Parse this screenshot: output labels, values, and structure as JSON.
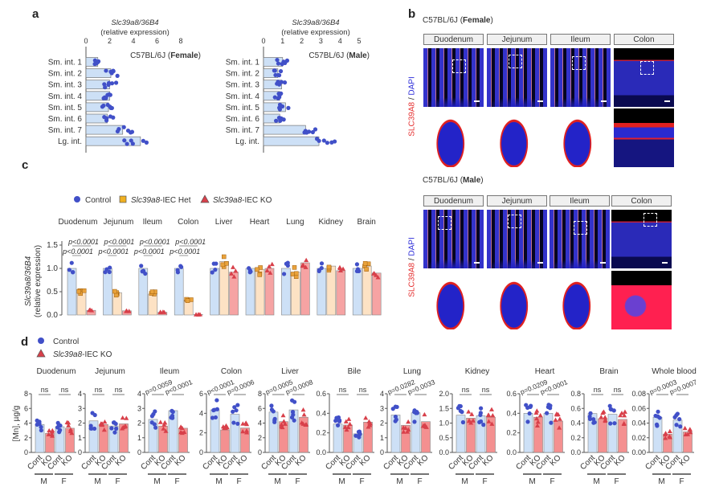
{
  "panel_labels": {
    "a": "a",
    "b": "b",
    "c": "c",
    "d": "d"
  },
  "colors": {
    "control": "#4150c8",
    "het": "#e9a23b",
    "ko": "#d8404a",
    "control_bar": "#cde0f6",
    "het_bar": "#fde2c4",
    "ko_bar": "#f6a3a3",
    "ko_bar_d": "#f49090"
  },
  "panel_b": {
    "female_title": {
      "strain": "C57BL/6J",
      "sex": "Female"
    },
    "male_title": {
      "strain": "C57BL/6J",
      "sex": "Male"
    },
    "stain_label": {
      "red": "SLC39A8",
      "sep": " / ",
      "blue": "DAPI"
    },
    "segments": [
      "Duodenum",
      "Jejunum",
      "Ileum",
      "Colon"
    ]
  },
  "chart_data": [
    {
      "type": "bar",
      "orientation": "horizontal",
      "title": {
        "strain": "C57BL/6J",
        "sex": "Female"
      },
      "xlabel": {
        "gene": "Slc39a8/36B4",
        "unit": "(relative expression)"
      },
      "xlim": [
        0,
        8
      ],
      "xticks": [
        0,
        2,
        4,
        6,
        8
      ],
      "categories": [
        "Sm. int. 1",
        "Sm. int. 2",
        "Sm. int. 3",
        "Sm. int. 4",
        "Sm. int. 5",
        "Sm. int. 6",
        "Sm. int. 7",
        "Lg. int."
      ],
      "values": [
        1.0,
        2.1,
        2.0,
        2.0,
        1.9,
        1.8,
        3.1,
        4.6
      ]
    },
    {
      "type": "bar",
      "orientation": "horizontal",
      "title": {
        "strain": "C57BL/6J",
        "sex": "Male"
      },
      "xlabel": {
        "gene": "Slc39a8/36B4",
        "unit": "(relative expression)"
      },
      "xlim": [
        0,
        5
      ],
      "xticks": [
        0,
        1,
        2,
        3,
        4,
        5
      ],
      "categories": [
        "Sm. int. 1",
        "Sm. int. 2",
        "Sm. int. 3",
        "Sm. int. 4",
        "Sm. int. 5",
        "Sm. int. 6",
        "Sm. int. 7",
        "Lg. int."
      ],
      "values": [
        1.0,
        0.75,
        0.95,
        0.85,
        1.15,
        0.85,
        2.2,
        2.9
      ]
    },
    {
      "type": "bar",
      "legend": [
        {
          "gene": "",
          "label": "Control"
        },
        {
          "gene": "Slc39a8",
          "label": "-IEC Het"
        },
        {
          "gene": "Slc39a8",
          "label": "-IEC KO"
        }
      ],
      "ylabel": {
        "gene": "Slc39a8/36B4",
        "unit": "(relative expression)"
      },
      "ylim": [
        0,
        1.5
      ],
      "yticks": [
        "0.0",
        "0.5",
        "1.0",
        "1.5"
      ],
      "categories": [
        "Duodenum",
        "Jejunum",
        "Ileum",
        "Colon",
        "Liver",
        "Heart",
        "Lung",
        "Kidney",
        "Brain"
      ],
      "series": [
        {
          "name": "Control",
          "values": [
            1.0,
            1.0,
            1.0,
            1.0,
            1.0,
            1.0,
            1.0,
            1.0,
            1.0
          ]
        },
        {
          "name": "Slc39a8-IEC Het",
          "values": [
            0.52,
            0.48,
            0.45,
            0.32,
            1.15,
            0.98,
            0.92,
            1.05,
            1.05
          ]
        },
        {
          "name": "Slc39a8-IEC KO",
          "values": [
            0.1,
            0.09,
            0.06,
            0.01,
            0.92,
            1.0,
            1.12,
            0.95,
            0.9
          ]
        }
      ],
      "annotations": [
        {
          "category": "Duodenum",
          "control_vs_ko": "p<0.0001",
          "control_vs_het": "p<0.0001"
        },
        {
          "category": "Jejunum",
          "control_vs_ko": "p<0.0001",
          "control_vs_het": "p<0.0001"
        },
        {
          "category": "Ileum",
          "control_vs_ko": "p<0.0001",
          "control_vs_het": "p<0.0001"
        },
        {
          "category": "Colon",
          "control_vs_ko": "p<0.0001",
          "control_vs_het": "p<0.0001"
        }
      ]
    },
    {
      "type": "bar",
      "legend": [
        {
          "gene": "",
          "label": "Control"
        },
        {
          "gene": "Slc39a8",
          "label": "-IEC KO"
        }
      ],
      "ylabel": "[Mn], µg/g",
      "xtick_labels": [
        "Cont",
        "KO",
        "Cont",
        "KO"
      ],
      "sex_labels": [
        "M",
        "F"
      ],
      "panels": [
        {
          "title": "Duodenum",
          "ylim": [
            0,
            8
          ],
          "yticks": [
            "0",
            "2",
            "4",
            "6",
            "8"
          ],
          "values": [
            3.8,
            2.6,
            3.5,
            3.3
          ],
          "pvalues": [
            "ns",
            "ns"
          ]
        },
        {
          "title": "Jejunum",
          "ylim": [
            0,
            4
          ],
          "yticks": [
            "0",
            "1",
            "2",
            "3",
            "4"
          ],
          "values": [
            2.15,
            1.9,
            1.8,
            1.95
          ],
          "pvalues": [
            "ns",
            "ns"
          ]
        },
        {
          "title": "Ileum",
          "ylim": [
            0,
            4
          ],
          "yticks": [
            "0",
            "1",
            "2",
            "3",
            "4"
          ],
          "values": [
            2.25,
            1.8,
            2.85,
            1.65
          ],
          "pvalues": [
            "p=0.0059",
            "p<0.0001"
          ]
        },
        {
          "title": "Colon",
          "ylim": [
            0,
            6
          ],
          "yticks": [
            "0",
            "2",
            "4",
            "6"
          ],
          "values": [
            4.35,
            2.3,
            3.9,
            2.5
          ],
          "pvalues": [
            "p<0.0001",
            "p=0.0006"
          ]
        },
        {
          "title": "Liver",
          "ylim": [
            0,
            8
          ],
          "yticks": [
            "0",
            "2",
            "4",
            "6",
            "8"
          ],
          "values": [
            5.5,
            4.2,
            5.8,
            4.8
          ],
          "pvalues": [
            "p=0.0005",
            "p=0.0008"
          ]
        },
        {
          "title": "Bile",
          "ylim": [
            0,
            0.6
          ],
          "yticks": [
            "0.0",
            "0.2",
            "0.4",
            "0.6"
          ],
          "values": [
            0.29,
            0.28,
            0.19,
            0.31
          ],
          "pvalues": [
            "ns",
            "ns"
          ]
        },
        {
          "title": "Lung",
          "ylim": [
            0,
            4
          ],
          "yticks": [
            "0",
            "1",
            "2",
            "3",
            "4"
          ],
          "values": [
            2.55,
            1.85,
            2.7,
            2.1
          ],
          "pvalues": [
            "p=0.0282",
            "p=0.0033"
          ]
        },
        {
          "title": "Kidney",
          "ylim": [
            0,
            2
          ],
          "yticks": [
            "0.0",
            "0.5",
            "1.0",
            "1.5",
            "2.0"
          ],
          "values": [
            1.27,
            1.17,
            1.25,
            1.2
          ],
          "pvalues": [
            "ns",
            "ns"
          ]
        },
        {
          "title": "Heart",
          "ylim": [
            0,
            0.6
          ],
          "yticks": [
            "0.0",
            "0.2",
            "0.4",
            "0.6"
          ],
          "values": [
            0.4,
            0.36,
            0.4,
            0.32
          ],
          "pvalues": [
            "p=0.0209",
            "p<0.0001"
          ]
        },
        {
          "title": "Brain",
          "ylim": [
            0,
            0.8
          ],
          "yticks": [
            "0.0",
            "0.2",
            "0.4",
            "0.6",
            "0.8"
          ],
          "values": [
            0.53,
            0.46,
            0.52,
            0.45
          ],
          "pvalues": [
            "ns",
            "ns"
          ]
        },
        {
          "title": "Whole blood",
          "ylim": [
            0,
            0.08
          ],
          "yticks": [
            "0.00",
            "0.02",
            "0.04",
            "0.06",
            "0.08"
          ],
          "values": [
            0.048,
            0.025,
            0.044,
            0.028
          ],
          "pvalues": [
            "p=0.0003",
            "p=0.0007"
          ]
        }
      ]
    }
  ]
}
